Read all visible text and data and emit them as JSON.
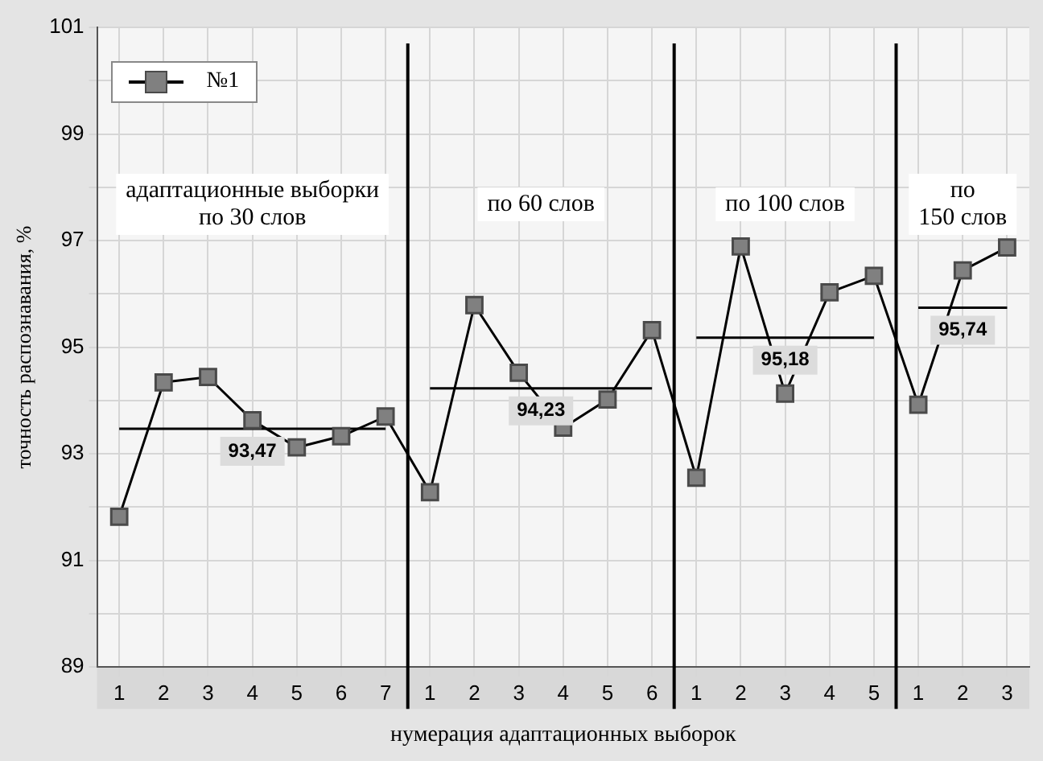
{
  "chart_data": {
    "type": "line",
    "xlabel": "нумерация адаптационных выборок",
    "ylabel": "точность распознавания, %",
    "categories": [
      "1",
      "2",
      "3",
      "4",
      "5",
      "6",
      "7",
      "1",
      "2",
      "3",
      "4",
      "5",
      "6",
      "1",
      "2",
      "3",
      "4",
      "5",
      "1",
      "2",
      "3"
    ],
    "series": [
      {
        "name": "№1",
        "color": "#808080",
        "marker": "square",
        "values": [
          91.82,
          94.34,
          94.44,
          93.63,
          93.12,
          93.33,
          93.7,
          92.28,
          95.79,
          94.52,
          93.49,
          94.02,
          95.32,
          92.55,
          96.89,
          94.13,
          96.03,
          96.34,
          93.92,
          96.44,
          96.87
        ]
      },
      {
        "color": "#000000",
        "marker": "none",
        "values": [
          93.47,
          93.47,
          93.47,
          93.47,
          93.47,
          93.47,
          93.47,
          null,
          null,
          null,
          null,
          null,
          null,
          null,
          null,
          null,
          null,
          null,
          null,
          null,
          null
        ]
      },
      {
        "color": "#000000",
        "marker": "none",
        "values": [
          null,
          null,
          null,
          null,
          null,
          null,
          null,
          94.23,
          94.23,
          94.23,
          94.23,
          94.23,
          94.23,
          null,
          null,
          null,
          null,
          null,
          null,
          null,
          null
        ]
      },
      {
        "color": "#000000",
        "marker": "none",
        "values": [
          null,
          null,
          null,
          null,
          null,
          null,
          null,
          null,
          null,
          null,
          null,
          null,
          null,
          95.18,
          95.18,
          95.18,
          95.18,
          95.18,
          null,
          null,
          null
        ]
      },
      {
        "color": "#000000",
        "marker": "none",
        "values": [
          null,
          null,
          null,
          null,
          null,
          null,
          null,
          null,
          null,
          null,
          null,
          null,
          null,
          null,
          null,
          null,
          null,
          null,
          95.74,
          95.74,
          95.74
        ]
      }
    ],
    "ylim": [
      89,
      101
    ],
    "yticks": [
      89,
      {
        "value": 90,
        "label": null
      },
      91,
      {
        "value": 92,
        "label": null
      },
      93,
      {
        "value": 94,
        "label": null
      },
      95,
      {
        "value": 96,
        "label": null
      },
      97,
      {
        "value": 98,
        "label": null
      },
      99,
      {
        "value": 100,
        "label": null
      },
      101
    ],
    "annotations": [
      "адаптационные выборки\nпо 30 слов",
      "по 60 слов",
      "по 100 слов",
      "по\n150 слов",
      {
        "text": "93,47",
        "y": 93.47
      },
      {
        "text": "94,23",
        "y": 94.23
      },
      {
        "text": "95,18",
        "y": 95.18
      },
      {
        "text": "95,74",
        "y": 95.74
      }
    ],
    "grid": true,
    "legend": "top left"
  }
}
